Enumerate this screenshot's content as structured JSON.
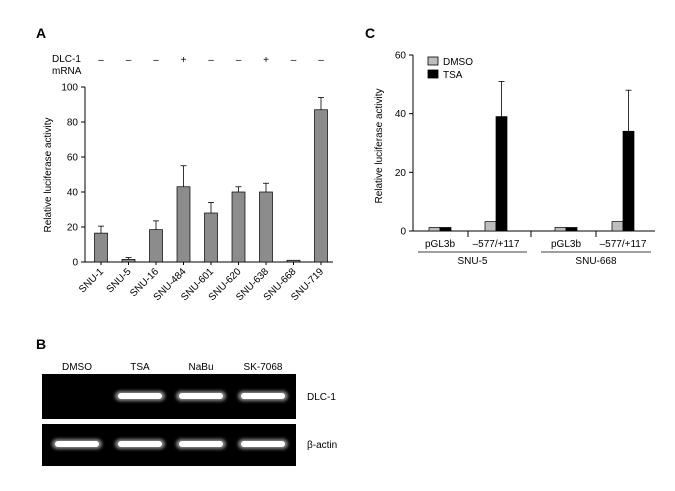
{
  "panels": {
    "a": "A",
    "b": "B",
    "c": "C"
  },
  "chart_data": [
    {
      "type": "bar",
      "panel": "A",
      "ylabel": "Relative luciferase activity",
      "ylim": [
        0,
        100
      ],
      "yticks": [
        0,
        20,
        40,
        60,
        80,
        100
      ],
      "categories": [
        "SNU-1",
        "SNU-5",
        "SNU-16",
        "SNU-484",
        "SNU-601",
        "SNU-620",
        "SNU-638",
        "SNU-668",
        "SNU-719"
      ],
      "values": [
        16.5,
        1.5,
        18.5,
        43,
        28,
        40,
        40,
        1,
        87
      ],
      "errors": [
        4,
        1,
        5,
        12,
        6,
        3,
        5,
        0,
        7
      ],
      "bar_color": "#8c8c8c",
      "row_header": [
        "DLC-1",
        "mRNA"
      ],
      "mrna_status": [
        "–",
        "–",
        "–",
        "+",
        "–",
        "–",
        "+",
        "–",
        "–"
      ]
    },
    {
      "type": "bar",
      "panel": "C",
      "ylabel": "Relative luciferase activity",
      "ylim": [
        0,
        60
      ],
      "yticks": [
        0,
        20,
        40,
        60
      ],
      "categories": [
        "pGL3b",
        "–577/+117",
        "pGL3b",
        "–577/+117"
      ],
      "groups": [
        "SNU-5",
        "SNU-668"
      ],
      "series": [
        {
          "name": "DMSO",
          "color": "#bdbdbd",
          "values": [
            1.2,
            3.2,
            1.2,
            3.2
          ],
          "errors": [
            0,
            0,
            0,
            0
          ]
        },
        {
          "name": "TSA",
          "color": "#000000",
          "values": [
            1.2,
            39,
            1.2,
            34
          ],
          "errors": [
            0,
            12,
            0,
            14
          ]
        }
      ],
      "legend_position": "top-left"
    }
  ],
  "gel": {
    "lanes": [
      "DMSO",
      "TSA",
      "NaBu",
      "SK-7068"
    ],
    "rows": [
      {
        "label": "DLC-1",
        "band_intensity": [
          0,
          1,
          1,
          1
        ]
      },
      {
        "label": "β-actin",
        "band_intensity": [
          1,
          1,
          1,
          1
        ]
      }
    ]
  }
}
